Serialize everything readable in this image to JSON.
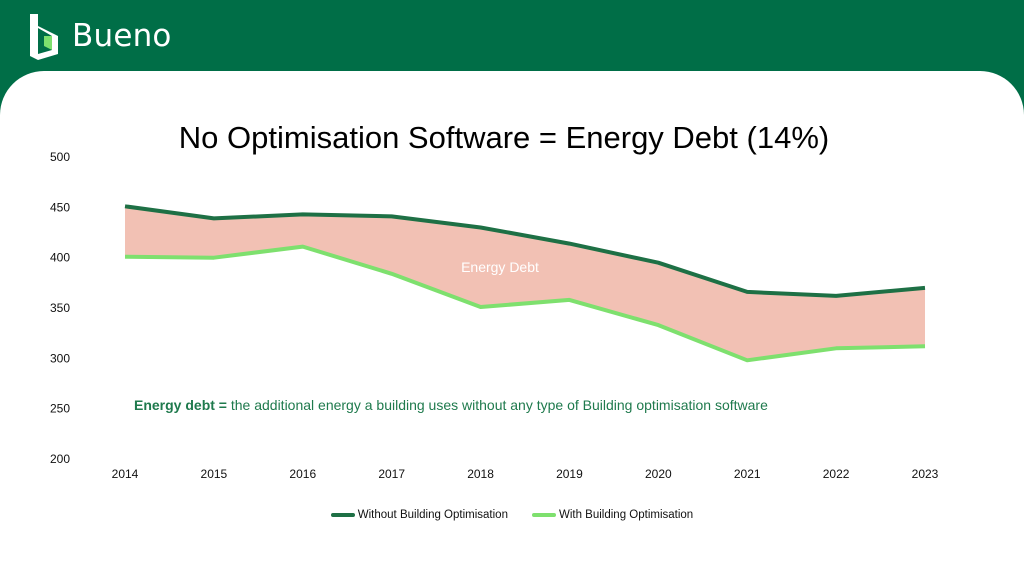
{
  "brand": {
    "name": "Bueno",
    "colors": {
      "header_bg": "#006e47",
      "panel_bg": "#ffffff"
    }
  },
  "chart_data": {
    "type": "line",
    "title": "No Optimisation Software = Energy Debt (14%)",
    "categories": [
      "2014",
      "2015",
      "2016",
      "2017",
      "2018",
      "2019",
      "2020",
      "2021",
      "2022",
      "2023"
    ],
    "series": [
      {
        "name": "Without Building Optimisation",
        "color": "#1e7045",
        "values": [
          451,
          439,
          443,
          441,
          430,
          414,
          395,
          366,
          362,
          370
        ]
      },
      {
        "name": "With Building Optimisation",
        "color": "#7ee06e",
        "values": [
          401,
          400,
          411,
          384,
          351,
          358,
          333,
          298,
          310,
          312
        ]
      }
    ],
    "ylim": [
      200,
      500
    ],
    "yticks": [
      "500",
      "450",
      "400",
      "350",
      "300",
      "250",
      "200"
    ],
    "fill_between": {
      "label": "Energy Debt",
      "color": "#f2c1b4"
    },
    "annotation": {
      "term": "Energy debt =",
      "text": " the additional energy a building uses without any type of Building optimisation software"
    },
    "grid": false,
    "legend": "bottom-center"
  }
}
